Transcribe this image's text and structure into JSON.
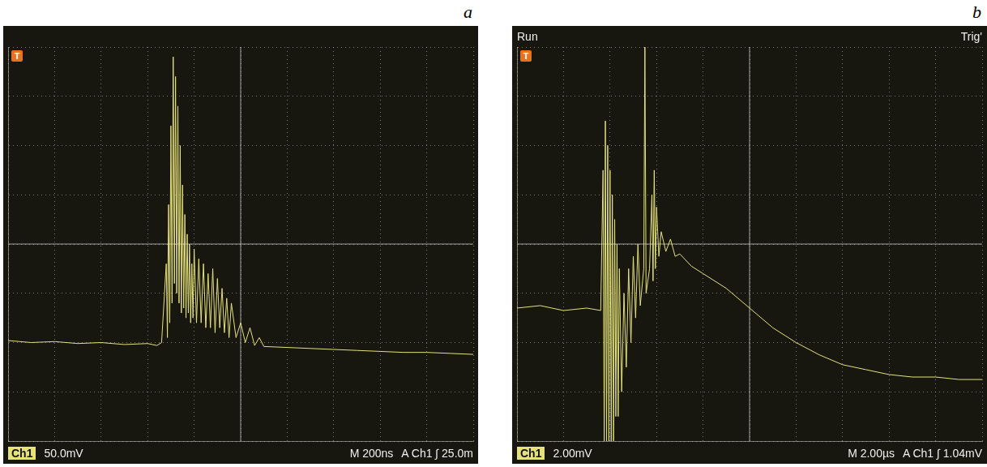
{
  "chart_data": [
    {
      "type": "line",
      "panel_label": "a",
      "color": "#e6e27a",
      "grid": true,
      "tick_labels": false,
      "trigger_marker": "T",
      "readouts": {
        "bottom_left": [
          "Ch1",
          "50.0mV"
        ],
        "bottom_right": [
          "M 200ns",
          "A Ch1 ∫ 25.0m"
        ]
      },
      "x": [
        0,
        100,
        200,
        300,
        400,
        500,
        600,
        640,
        660,
        680,
        685,
        690,
        695,
        700,
        705,
        710,
        715,
        720,
        725,
        730,
        735,
        740,
        745,
        750,
        755,
        760,
        765,
        770,
        775,
        780,
        785,
        790,
        795,
        800,
        810,
        820,
        830,
        840,
        850,
        860,
        870,
        880,
        890,
        900,
        910,
        920,
        930,
        940,
        950,
        960,
        980,
        1000,
        1020,
        1040,
        1060,
        1080,
        1100,
        1200,
        1300,
        1400,
        1500,
        1600,
        1700,
        1800,
        1900,
        2000
      ],
      "values": [
        -98,
        -100,
        -99,
        -101,
        -100,
        -102,
        -101,
        -103,
        -100,
        -20,
        -95,
        40,
        -80,
        120,
        -60,
        190,
        -40,
        170,
        -50,
        140,
        -60,
        100,
        -70,
        60,
        -65,
        30,
        -75,
        10,
        -70,
        0,
        -80,
        -20,
        -75,
        -5,
        -80,
        -15,
        -80,
        -20,
        -85,
        -30,
        -85,
        -25,
        -90,
        -35,
        -85,
        -45,
        -90,
        -55,
        -95,
        -60,
        -95,
        -80,
        -100,
        -85,
        -103,
        -95,
        -104,
        -105,
        -106,
        -107,
        -108,
        -109,
        -110,
        -110,
        -111,
        -112
      ],
      "xlim": [
        0,
        2000
      ],
      "xticks": [
        0,
        200,
        400,
        600,
        800,
        1000,
        1200,
        1400,
        1600,
        1800,
        2000
      ],
      "ylim": [
        -200,
        200
      ],
      "yticks": [
        -200,
        -150,
        -100,
        -50,
        0,
        50,
        100,
        150,
        200
      ]
    },
    {
      "type": "line",
      "panel_label": "b",
      "color": "#e6e27a",
      "grid": true,
      "tick_labels": false,
      "trigger_marker": "T",
      "readouts": {
        "top_left": [
          "Run"
        ],
        "top_right": [
          "Trig'"
        ],
        "bottom_left": [
          "Ch1",
          "2.00mV"
        ],
        "bottom_right": [
          "M 2.00µs",
          "A Ch1 ∫ 1.04mV"
        ]
      },
      "x": [
        0,
        1,
        2,
        3,
        3.6,
        3.7,
        3.75,
        3.8,
        3.85,
        3.9,
        3.95,
        4.0,
        4.05,
        4.1,
        4.15,
        4.2,
        4.25,
        4.3,
        4.35,
        4.4,
        4.5,
        4.6,
        4.7,
        4.8,
        4.9,
        5.0,
        5.1,
        5.2,
        5.3,
        5.45,
        5.5,
        5.55,
        5.7,
        5.8,
        5.85,
        5.9,
        5.95,
        6.0,
        6.1,
        6.2,
        6.4,
        6.6,
        6.8,
        7,
        7.5,
        8,
        9,
        10,
        11,
        12,
        13,
        14,
        15,
        16,
        17,
        18,
        19,
        20
      ],
      "values": [
        -2.6,
        -2.5,
        -2.7,
        -2.6,
        -2.7,
        3,
        -8,
        5,
        -8,
        4,
        -8,
        3,
        -8,
        2,
        -8,
        1,
        -7,
        0,
        -7,
        -1,
        -6,
        -2,
        -5,
        -1,
        -4,
        -0.5,
        -3,
        0,
        -2.5,
        -1,
        8,
        -2,
        -1,
        2,
        -1.5,
        3,
        -1,
        1.5,
        -0.5,
        0.5,
        -0.3,
        0.2,
        -0.5,
        -0.4,
        -0.9,
        -1.2,
        -1.8,
        -2.6,
        -3.4,
        -4.0,
        -4.5,
        -4.9,
        -5.1,
        -5.3,
        -5.4,
        -5.4,
        -5.5,
        -5.5
      ],
      "xlim": [
        0,
        20
      ],
      "xticks": [
        0,
        2,
        4,
        6,
        8,
        10,
        12,
        14,
        16,
        18,
        20
      ],
      "ylim": [
        -8,
        8
      ],
      "yticks": [
        -8,
        -6,
        -4,
        -2,
        0,
        2,
        4,
        6,
        8
      ]
    }
  ]
}
